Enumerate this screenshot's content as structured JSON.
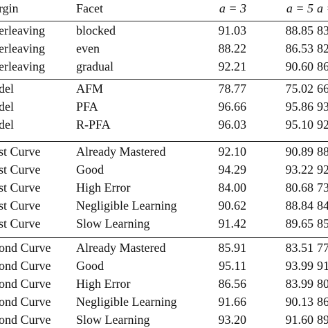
{
  "table": {
    "header": [
      "rgin",
      "Facet",
      "a = 3",
      "a = 5",
      "a ="
    ],
    "sections": [
      {
        "rows": [
          [
            "erleaving",
            "blocked",
            "91.03",
            "88.85",
            "83"
          ],
          [
            "erleaving",
            "even",
            "88.22",
            "86.53",
            "82"
          ],
          [
            "erleaving",
            "gradual",
            "92.21",
            "90.60",
            "86"
          ]
        ]
      },
      {
        "rows": [
          [
            "del",
            "AFM",
            "78.77",
            "75.02",
            "66"
          ],
          [
            "del",
            "PFA",
            "96.66",
            "95.86",
            "93"
          ],
          [
            "del",
            "R-PFA",
            "96.03",
            "95.10",
            "92"
          ]
        ]
      },
      {
        "rows": [
          [
            "st Curve",
            "Already Mastered",
            "92.10",
            "90.89",
            "88"
          ],
          [
            "st Curve",
            "Good",
            "94.29",
            "93.22",
            "92"
          ],
          [
            "st Curve",
            "High Error",
            "84.00",
            "80.68",
            "73"
          ],
          [
            "st Curve",
            "Negligible Learning",
            "90.62",
            "88.84",
            "84"
          ],
          [
            "st Curve",
            "Slow Learning",
            "91.42",
            "89.65",
            "85"
          ]
        ]
      },
      {
        "rows": [
          [
            "ond Curve",
            "Already Mastered",
            "85.91",
            "83.51",
            "77"
          ],
          [
            "ond Curve",
            "Good",
            "95.11",
            "93.99",
            "91"
          ],
          [
            "ond Curve",
            "High Error",
            "86.56",
            "83.99",
            "80"
          ],
          [
            "ond Curve",
            "Negligible Learning",
            "91.66",
            "90.13",
            "86"
          ],
          [
            "ond Curve",
            "Slow Learning",
            "93.20",
            "91.60",
            "89"
          ]
        ]
      }
    ]
  }
}
